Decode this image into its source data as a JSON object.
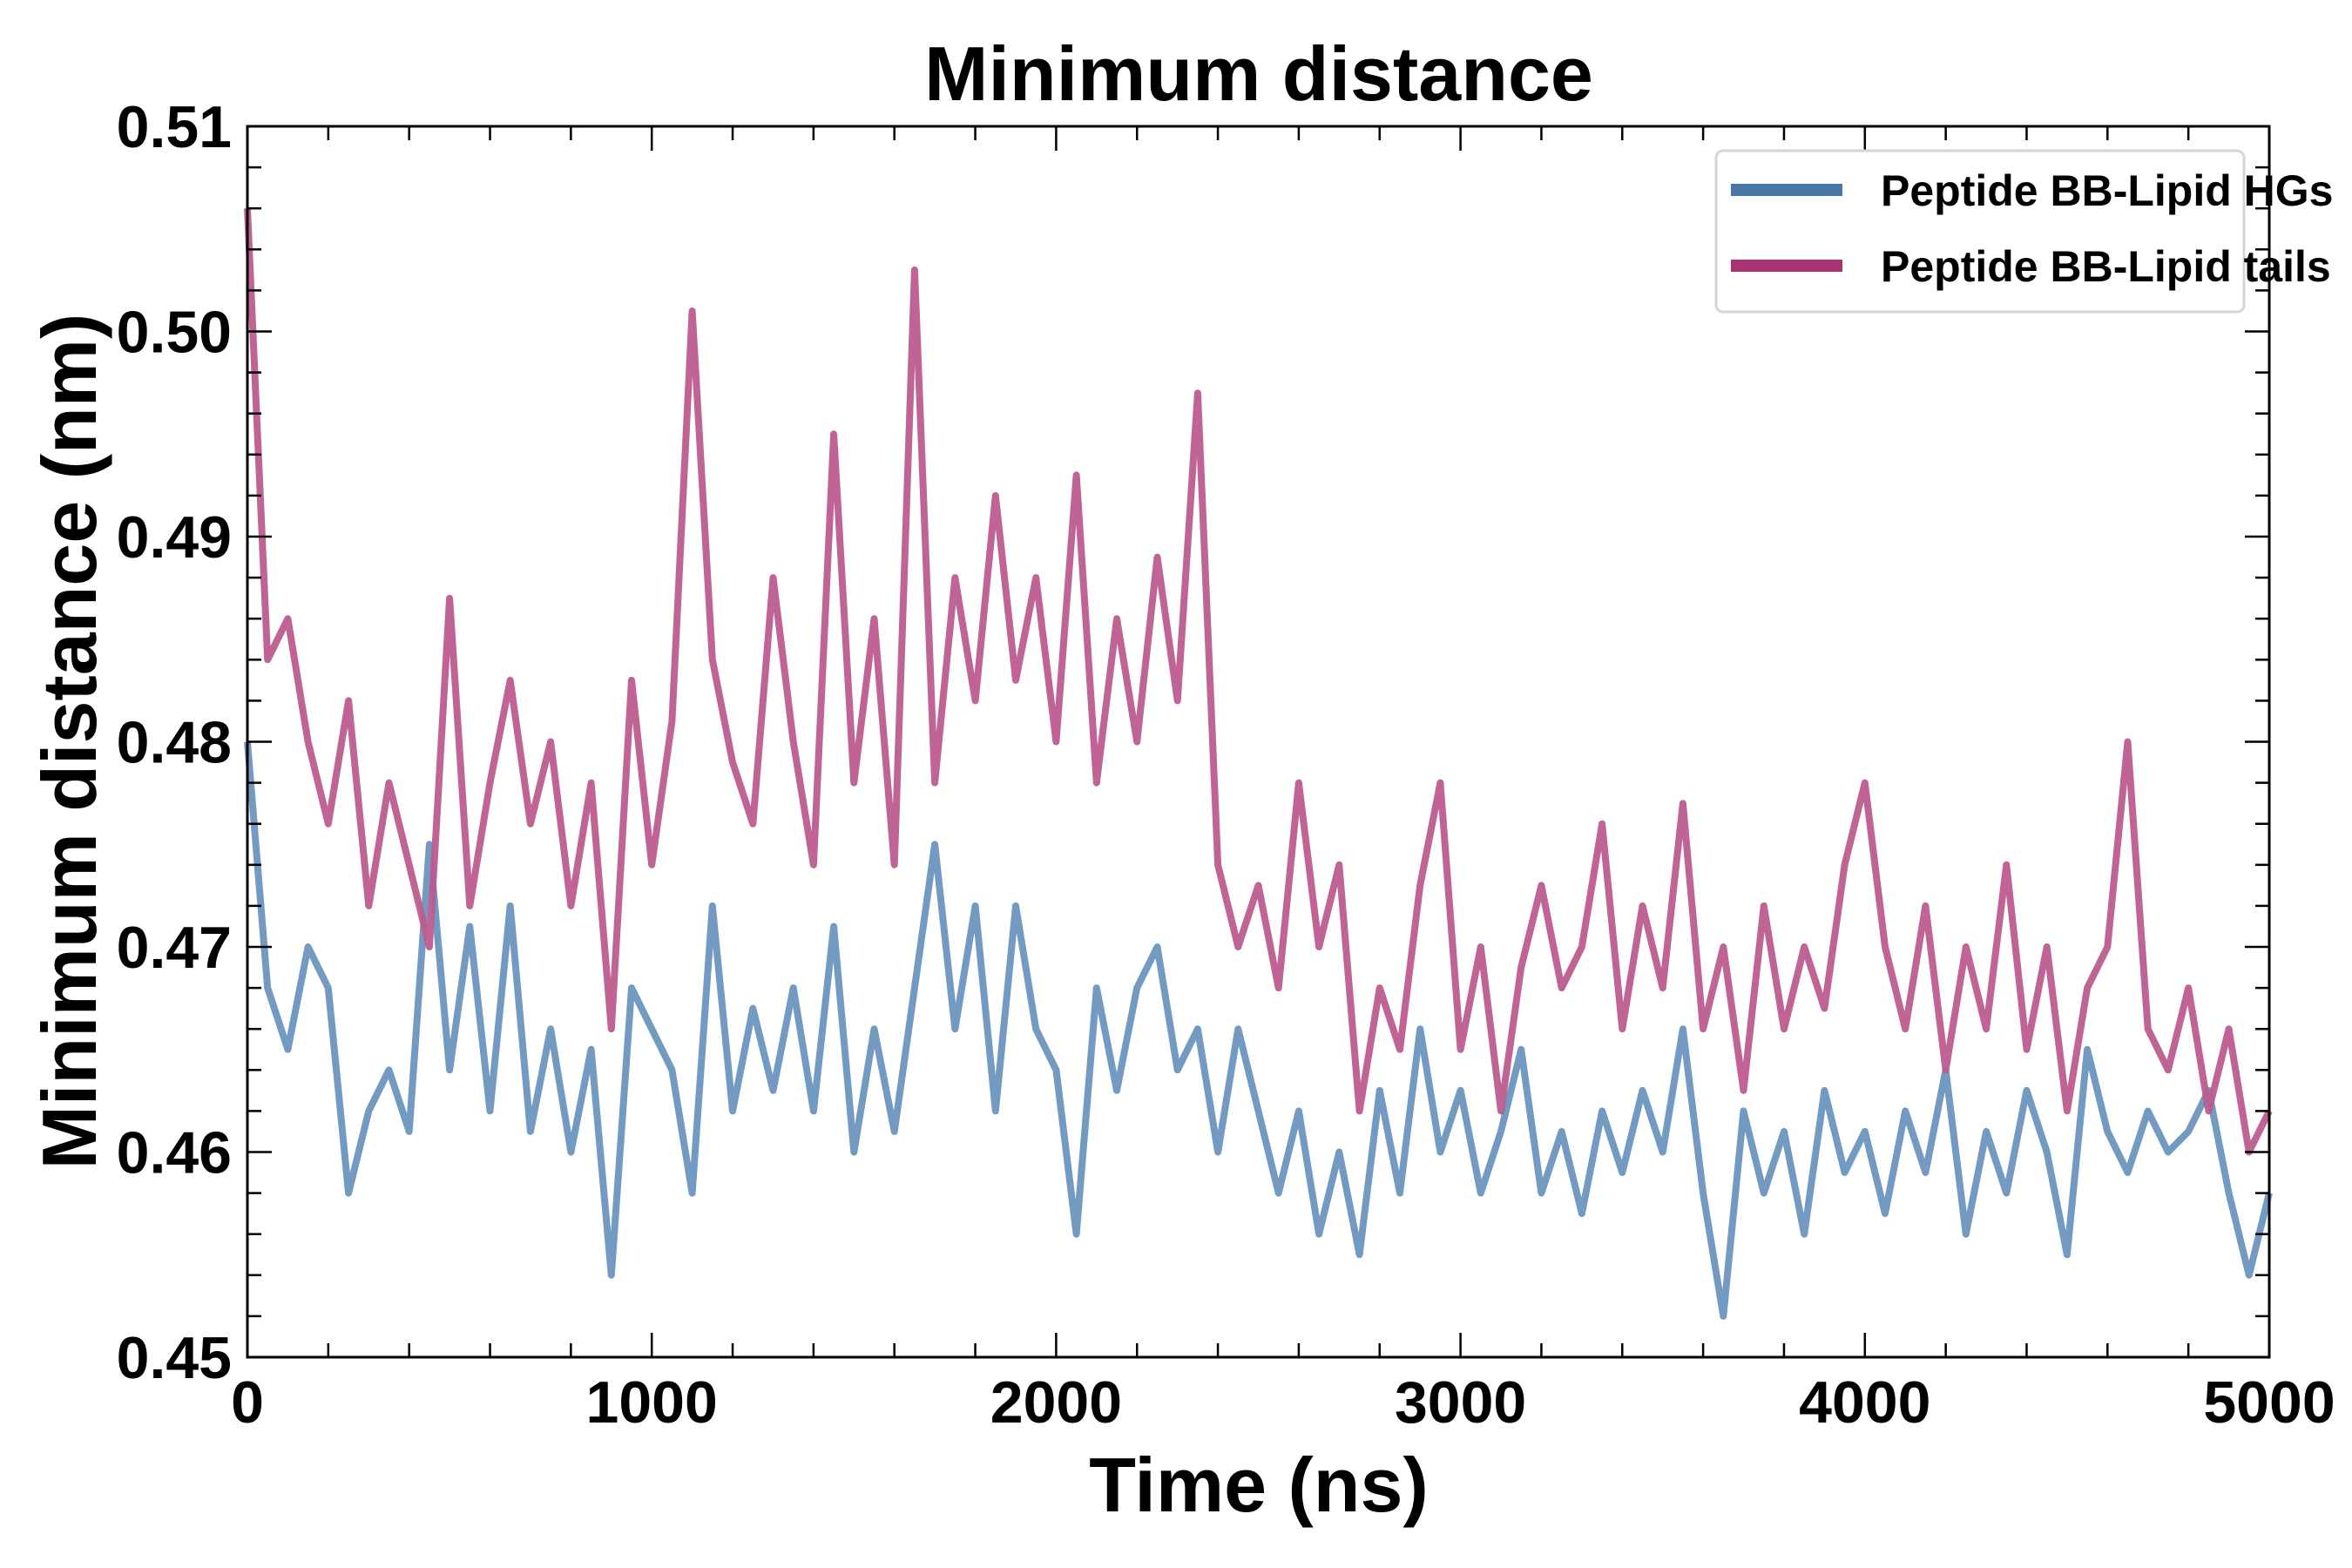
{
  "chart_data": {
    "type": "line",
    "title": "Minimum distance",
    "xlabel": "Time (ns)",
    "ylabel": "Minimum distance (nm)",
    "xlim": [
      0,
      5000
    ],
    "ylim": [
      0.45,
      0.51
    ],
    "xticks": [
      "0",
      "1000",
      "2000",
      "3000",
      "4000",
      "5000"
    ],
    "yticks": [
      "0.45",
      "0.46",
      "0.47",
      "0.48",
      "0.49",
      "0.50",
      "0.51"
    ],
    "grid": false,
    "legend_placement": "top-right",
    "x": [
      0,
      50,
      100,
      150,
      200,
      250,
      300,
      350,
      400,
      450,
      500,
      550,
      600,
      650,
      700,
      750,
      800,
      850,
      900,
      950,
      1000,
      1050,
      1100,
      1150,
      1200,
      1250,
      1300,
      1350,
      1400,
      1450,
      1500,
      1550,
      1600,
      1650,
      1700,
      1750,
      1800,
      1850,
      1900,
      1950,
      2000,
      2050,
      2100,
      2150,
      2200,
      2250,
      2300,
      2350,
      2400,
      2450,
      2500,
      2550,
      2600,
      2650,
      2700,
      2750,
      2800,
      2850,
      2900,
      2950,
      3000,
      3050,
      3100,
      3150,
      3200,
      3250,
      3300,
      3350,
      3400,
      3450,
      3500,
      3550,
      3600,
      3650,
      3700,
      3750,
      3800,
      3850,
      3900,
      3950,
      4000,
      4050,
      4100,
      4150,
      4200,
      4250,
      4300,
      4350,
      4400,
      4450,
      4500,
      4550,
      4600,
      4650,
      4700,
      4750,
      4800,
      4850,
      4900,
      4950,
      5000
    ],
    "series": [
      {
        "name": "Peptide BB-Lipid HGs",
        "color": "#4878a8",
        "line_color": "#6b95be",
        "values": [
          0.48,
          0.468,
          0.465,
          0.47,
          0.468,
          0.458,
          0.462,
          0.464,
          0.461,
          0.475,
          0.464,
          0.471,
          0.462,
          0.472,
          0.461,
          0.466,
          0.46,
          0.465,
          0.454,
          0.468,
          0.466,
          0.464,
          0.458,
          0.472,
          0.462,
          0.467,
          0.463,
          0.468,
          0.462,
          0.471,
          0.46,
          0.466,
          0.461,
          0.468,
          0.475,
          0.466,
          0.472,
          0.462,
          0.472,
          0.466,
          0.464,
          0.456,
          0.468,
          0.463,
          0.468,
          0.47,
          0.464,
          0.466,
          0.46,
          0.466,
          0.462,
          0.458,
          0.462,
          0.456,
          0.46,
          0.455,
          0.463,
          0.458,
          0.466,
          0.46,
          0.463,
          0.458,
          0.461,
          0.465,
          0.458,
          0.461,
          0.457,
          0.462,
          0.459,
          0.463,
          0.46,
          0.466,
          0.458,
          0.452,
          0.462,
          0.458,
          0.461,
          0.456,
          0.463,
          0.459,
          0.461,
          0.457,
          0.462,
          0.459,
          0.464,
          0.456,
          0.461,
          0.458,
          0.463,
          0.46,
          0.455,
          0.465,
          0.461,
          0.459,
          0.462,
          0.46,
          0.461,
          0.463,
          0.458,
          0.454,
          0.458
        ]
      },
      {
        "name": "Peptide BB-Lipid tails",
        "color": "#a83373",
        "line_color": "#bc5c8f",
        "values": [
          0.506,
          0.484,
          0.486,
          0.48,
          0.476,
          0.482,
          0.472,
          0.478,
          0.474,
          0.47,
          0.487,
          0.472,
          0.478,
          0.483,
          0.476,
          0.48,
          0.472,
          0.478,
          0.466,
          0.483,
          0.474,
          0.481,
          0.501,
          0.484,
          0.479,
          0.476,
          0.488,
          0.48,
          0.474,
          0.495,
          0.478,
          0.486,
          0.474,
          0.503,
          0.478,
          0.488,
          0.482,
          0.492,
          0.483,
          0.488,
          0.48,
          0.493,
          0.478,
          0.486,
          0.48,
          0.489,
          0.482,
          0.497,
          0.474,
          0.47,
          0.473,
          0.468,
          0.478,
          0.47,
          0.474,
          0.462,
          0.468,
          0.465,
          0.473,
          0.478,
          0.465,
          0.47,
          0.462,
          0.469,
          0.473,
          0.468,
          0.47,
          0.476,
          0.466,
          0.472,
          0.468,
          0.477,
          0.466,
          0.47,
          0.463,
          0.472,
          0.466,
          0.47,
          0.467,
          0.474,
          0.478,
          0.47,
          0.466,
          0.472,
          0.464,
          0.47,
          0.466,
          0.474,
          0.465,
          0.47,
          0.462,
          0.468,
          0.47,
          0.48,
          0.466,
          0.464,
          0.468,
          0.462,
          0.466,
          0.46,
          0.462
        ]
      }
    ]
  }
}
